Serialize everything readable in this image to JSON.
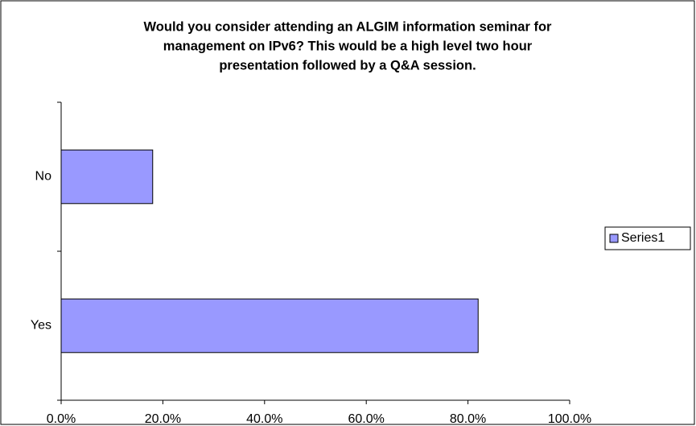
{
  "chart_data": {
    "type": "bar",
    "orientation": "horizontal",
    "title": [
      "Would you consider attending an ALGIM information seminar for",
      "management on IPv6? This would be a high level two hour",
      "presentation followed by a Q&A session."
    ],
    "categories": [
      "Yes",
      "No"
    ],
    "series": [
      {
        "name": "Series1",
        "color": "#9999ff",
        "values": [
          82,
          18
        ]
      }
    ],
    "xlim": [
      0,
      100
    ],
    "xticks": [
      {
        "value": 0,
        "label": "0.0%"
      },
      {
        "value": 20,
        "label": "20.0%"
      },
      {
        "value": 40,
        "label": "40.0%"
      },
      {
        "value": 60,
        "label": "60.0%"
      },
      {
        "value": 80,
        "label": "80.0%"
      },
      {
        "value": 100,
        "label": "100.0%"
      }
    ],
    "grid": false,
    "legend": "right"
  }
}
